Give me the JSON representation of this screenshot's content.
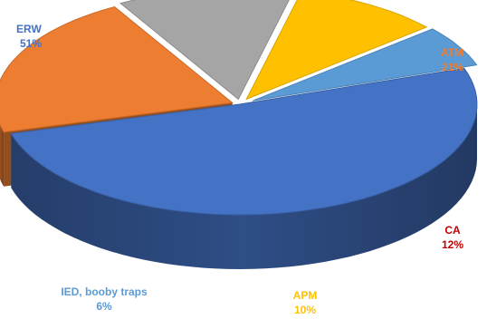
{
  "chart_data": {
    "type": "pie",
    "style": "3d-exploded",
    "title": "",
    "slices": [
      {
        "label": "ERW",
        "value": 51,
        "pct_label": "51%",
        "color": "#4472C4",
        "label_color": "#4472C4"
      },
      {
        "label": "ATM",
        "value": 21,
        "pct_label": "21%",
        "color": "#ED7D31",
        "label_color": "#ED7D31"
      },
      {
        "label": "CA",
        "value": 12,
        "pct_label": "12%",
        "color": "#A5A5A5",
        "label_color": "#C00000"
      },
      {
        "label": "APM",
        "value": 10,
        "pct_label": "10%",
        "color": "#FFC000",
        "label_color": "#FFC000"
      },
      {
        "label": "IED, booby traps",
        "value": 6,
        "pct_label": "6%",
        "color": "#5B9BD5",
        "label_color": "#5B9BD5"
      }
    ]
  }
}
